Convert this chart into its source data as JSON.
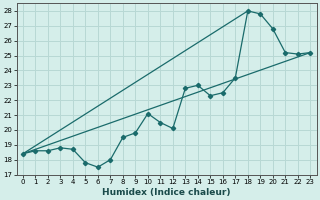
{
  "xlabel": "Humidex (Indice chaleur)",
  "bg_color": "#d5eeea",
  "grid_color": "#b8d8d4",
  "line_color": "#1a6b6b",
  "xlim": [
    -0.5,
    23.5
  ],
  "ylim": [
    17.0,
    28.5
  ],
  "yticks": [
    17,
    18,
    19,
    20,
    21,
    22,
    23,
    24,
    25,
    26,
    27,
    28
  ],
  "xticks": [
    0,
    1,
    2,
    3,
    4,
    5,
    6,
    7,
    8,
    9,
    10,
    11,
    12,
    13,
    14,
    15,
    16,
    17,
    18,
    19,
    20,
    21,
    22,
    23
  ],
  "xtick_labels": [
    "0",
    "1",
    "2",
    "3",
    "4",
    "5",
    "6",
    "7",
    "8",
    "9",
    "10",
    "11",
    "12",
    "13",
    "14",
    "15",
    "16",
    "17",
    "18",
    "19",
    "20",
    "21",
    "22",
    "23"
  ],
  "line1_x": [
    0,
    1,
    2,
    3,
    4,
    5,
    6,
    7,
    8,
    9,
    10,
    11,
    12,
    13,
    14,
    15,
    16,
    17,
    18,
    19,
    20,
    21,
    22,
    23
  ],
  "line1_y": [
    18.4,
    18.6,
    18.6,
    18.8,
    18.7,
    17.8,
    17.5,
    18.0,
    19.5,
    19.8,
    21.1,
    20.5,
    20.1,
    22.8,
    23.0,
    22.3,
    22.5,
    23.5,
    28.0,
    27.8,
    26.8,
    25.2,
    25.1,
    25.2
  ],
  "line2_x": [
    0,
    23
  ],
  "line2_y": [
    18.4,
    25.2
  ],
  "line3_x": [
    0,
    18
  ],
  "line3_y": [
    18.4,
    28.0
  ],
  "xlabel_fontsize": 6.5,
  "tick_fontsize": 5.0
}
